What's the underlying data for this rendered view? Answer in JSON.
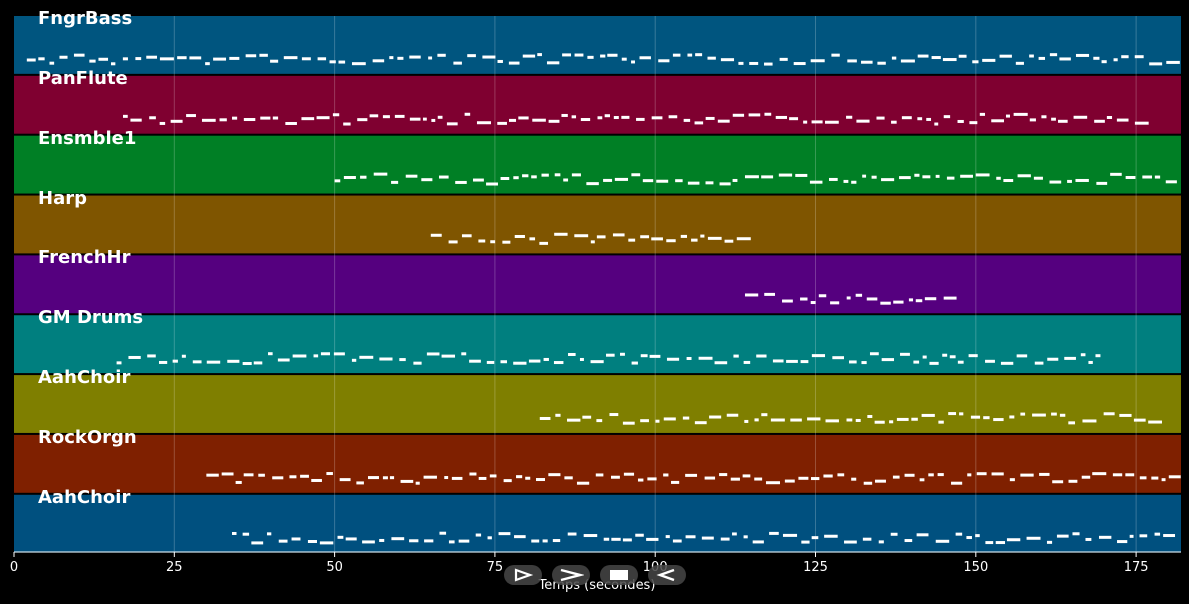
{
  "chart_data": {
    "type": "piano-roll",
    "xlabel": "Temps (secondes)",
    "xlim": [
      0,
      182
    ],
    "x_ticks": [
      0,
      25,
      50,
      75,
      100,
      125,
      150,
      175
    ],
    "grid": true,
    "tracks": [
      {
        "name": "FngrBass",
        "color": "#00557f",
        "start": 2,
        "end": 182
      },
      {
        "name": "PanFlute",
        "color": "#7f0030",
        "start": 17,
        "end": 175
      },
      {
        "name": "Ensmble1",
        "color": "#007f25",
        "start": 50,
        "end": 182
      },
      {
        "name": "Harp",
        "color": "#7f5500",
        "start": 65,
        "end": 114
      },
      {
        "name": "FrenchHr",
        "color": "#55007f",
        "start": 114,
        "end": 146
      },
      {
        "name": "GM Drums",
        "color": "#007f7f",
        "start": 16,
        "end": 169
      },
      {
        "name": "AahChoir",
        "color": "#7f7f00",
        "start": 82,
        "end": 179
      },
      {
        "name": "RockOrgn",
        "color": "#7f2000",
        "start": 30,
        "end": 182
      },
      {
        "name": "AahChoir",
        "color": "#00507f",
        "start": 34,
        "end": 181
      }
    ]
  },
  "controls": {
    "play": "play-icon",
    "next": "forward-icon",
    "stop": "stop-icon",
    "back": "rewind-icon"
  }
}
